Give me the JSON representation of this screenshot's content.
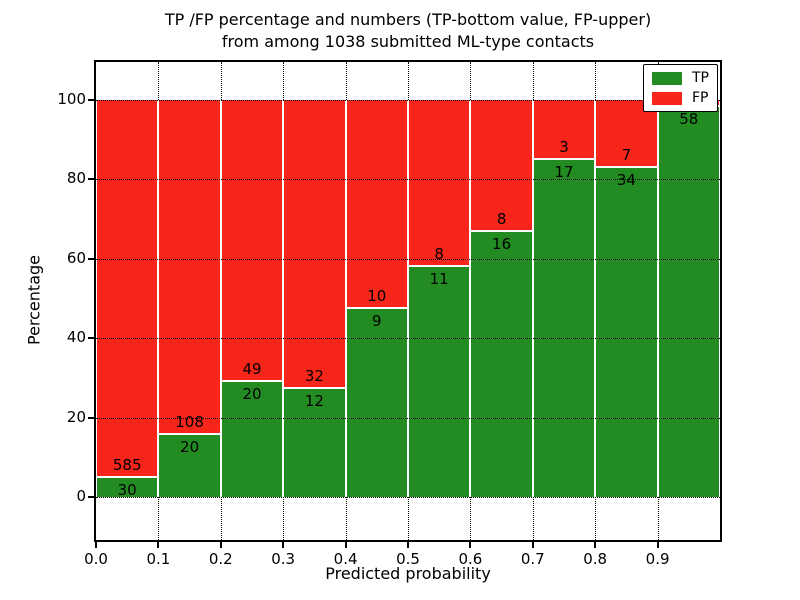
{
  "chart_data": {
    "type": "bar",
    "stacked": true,
    "normalized_to_percent": true,
    "title_line1": "TP /FP percentage and numbers (TP-bottom value, FP-upper)",
    "title_line2": "from among 1038 submitted ML-type contacts",
    "xlabel": "Predicted probability",
    "ylabel": "Percentage",
    "total_contacts": 1038,
    "bins": [
      "0.0-0.1",
      "0.1-0.2",
      "0.2-0.3",
      "0.3-0.4",
      "0.4-0.5",
      "0.5-0.6",
      "0.6-0.7",
      "0.7-0.8",
      "0.8-0.9",
      "0.9-1.0"
    ],
    "x_tick_labels": [
      "0.0",
      "0.1",
      "0.2",
      "0.3",
      "0.4",
      "0.5",
      "0.6",
      "0.7",
      "0.8",
      "0.9"
    ],
    "y_ticks": [
      0,
      20,
      40,
      60,
      80,
      100
    ],
    "y_tick_labels": [
      "0",
      "20",
      "40",
      "60",
      "80",
      "100"
    ],
    "xlim": [
      0.0,
      1.0
    ],
    "ylim": [
      -11,
      110
    ],
    "grid": "dotted",
    "series": [
      {
        "name": "TP",
        "color": "#228b22",
        "values": [
          30,
          20,
          20,
          12,
          9,
          11,
          16,
          17,
          34,
          58
        ]
      },
      {
        "name": "FP",
        "color": "#f8251b",
        "values": [
          585,
          108,
          49,
          32,
          10,
          8,
          8,
          3,
          7,
          1
        ]
      }
    ],
    "tp_percent": [
      4.9,
      15.6,
      29.0,
      27.3,
      47.4,
      57.9,
      66.7,
      85.0,
      82.9,
      98.3
    ],
    "bar_labels": {
      "tp": [
        "30",
        "20",
        "20",
        "12",
        "9",
        "11",
        "16",
        "17",
        "34",
        "58"
      ],
      "fp": [
        "585",
        "108",
        "49",
        "32",
        "10",
        "8",
        "8",
        "3",
        "7",
        ""
      ]
    },
    "legend": {
      "position": "upper right",
      "entries": [
        {
          "label": "TP",
          "color": "#228b22"
        },
        {
          "label": "FP",
          "color": "#f8251b"
        }
      ]
    }
  }
}
